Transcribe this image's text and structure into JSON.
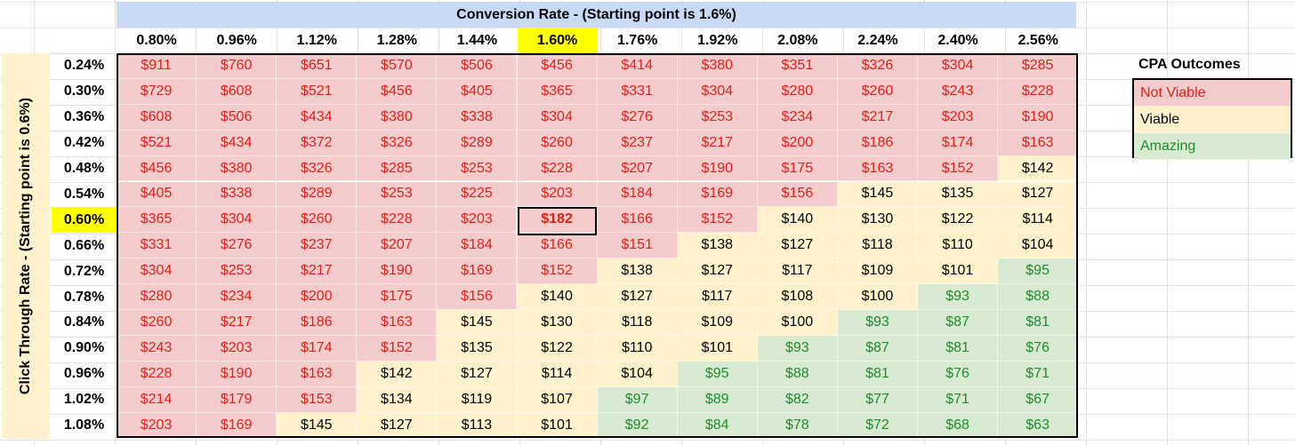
{
  "header": {
    "title": "Conversion Rate - (Starting point is 1.6%)",
    "side_label": "Click Through Rate - (Starting point is 0.6%)"
  },
  "columns": [
    "0.80%",
    "0.96%",
    "1.12%",
    "1.28%",
    "1.44%",
    "1.60%",
    "1.76%",
    "1.92%",
    "2.08%",
    "2.24%",
    "2.40%",
    "2.56%"
  ],
  "rows": [
    "0.24%",
    "0.30%",
    "0.36%",
    "0.42%",
    "0.48%",
    "0.54%",
    "0.60%",
    "0.66%",
    "0.72%",
    "0.78%",
    "0.84%",
    "0.90%",
    "0.96%",
    "1.02%",
    "1.08%"
  ],
  "highlight": {
    "column": 5,
    "row": 6,
    "color": "#ffff00"
  },
  "values": [
    [
      "$911",
      "$760",
      "$651",
      "$570",
      "$506",
      "$456",
      "$414",
      "$380",
      "$351",
      "$326",
      "$304",
      "$285"
    ],
    [
      "$729",
      "$608",
      "$521",
      "$456",
      "$405",
      "$365",
      "$331",
      "$304",
      "$280",
      "$260",
      "$243",
      "$228"
    ],
    [
      "$608",
      "$506",
      "$434",
      "$380",
      "$338",
      "$304",
      "$276",
      "$253",
      "$234",
      "$217",
      "$203",
      "$190"
    ],
    [
      "$521",
      "$434",
      "$372",
      "$326",
      "$289",
      "$260",
      "$237",
      "$217",
      "$200",
      "$186",
      "$174",
      "$163"
    ],
    [
      "$456",
      "$380",
      "$326",
      "$285",
      "$253",
      "$228",
      "$207",
      "$190",
      "$175",
      "$163",
      "$152",
      "$142"
    ],
    [
      "$405",
      "$338",
      "$289",
      "$253",
      "$225",
      "$203",
      "$184",
      "$169",
      "$156",
      "$145",
      "$135",
      "$127"
    ],
    [
      "$365",
      "$304",
      "$260",
      "$228",
      "$203",
      "$182",
      "$166",
      "$152",
      "$140",
      "$130",
      "$122",
      "$114"
    ],
    [
      "$331",
      "$276",
      "$237",
      "$207",
      "$184",
      "$166",
      "$151",
      "$138",
      "$127",
      "$118",
      "$110",
      "$104"
    ],
    [
      "$304",
      "$253",
      "$217",
      "$190",
      "$169",
      "$152",
      "$138",
      "$127",
      "$117",
      "$109",
      "$101",
      "$95"
    ],
    [
      "$280",
      "$234",
      "$200",
      "$175",
      "$156",
      "$140",
      "$127",
      "$117",
      "$108",
      "$100",
      "$93",
      "$88"
    ],
    [
      "$260",
      "$217",
      "$186",
      "$163",
      "$145",
      "$130",
      "$118",
      "$109",
      "$100",
      "$93",
      "$87",
      "$81"
    ],
    [
      "$243",
      "$203",
      "$174",
      "$152",
      "$135",
      "$122",
      "$110",
      "$101",
      "$93",
      "$87",
      "$81",
      "$76"
    ],
    [
      "$228",
      "$190",
      "$163",
      "$142",
      "$127",
      "$114",
      "$104",
      "$95",
      "$88",
      "$81",
      "$76",
      "$71"
    ],
    [
      "$214",
      "$179",
      "$153",
      "$134",
      "$119",
      "$107",
      "$97",
      "$89",
      "$82",
      "$77",
      "$71",
      "$67"
    ],
    [
      "$203",
      "$169",
      "$145",
      "$127",
      "$113",
      "$101",
      "$92",
      "$84",
      "$78",
      "$72",
      "$68",
      "$63"
    ]
  ],
  "categories": [
    "rrrrrrrrrrrr",
    "rrrrrrrrrrrr",
    "rrrrrrrrrrrr",
    "rrrrrrrrrrrr",
    "rrrrrrrrrrry",
    "rrrrrrrrryyy",
    "rrrrrrrryyyy",
    "rrrrrrryyyyy",
    "rrrrrryyyyyg",
    "rrrrryyyyygg",
    "rrrryyyyyggg",
    "rrrryyyygggg",
    "rrryyyyggggg",
    "rrryyygggggg",
    "rryyyygggggg"
  ],
  "legend": {
    "title": "CPA Outcomes",
    "items": [
      {
        "key": "r",
        "label": "Not Viable",
        "bg": "#f4cccc",
        "fg": "#e0201b"
      },
      {
        "key": "y",
        "label": "Viable",
        "bg": "#fff2cc",
        "fg": "#000000"
      },
      {
        "key": "g",
        "label": "Amazing",
        "bg": "#d9ead3",
        "fg": "#1e8c2b"
      }
    ]
  }
}
